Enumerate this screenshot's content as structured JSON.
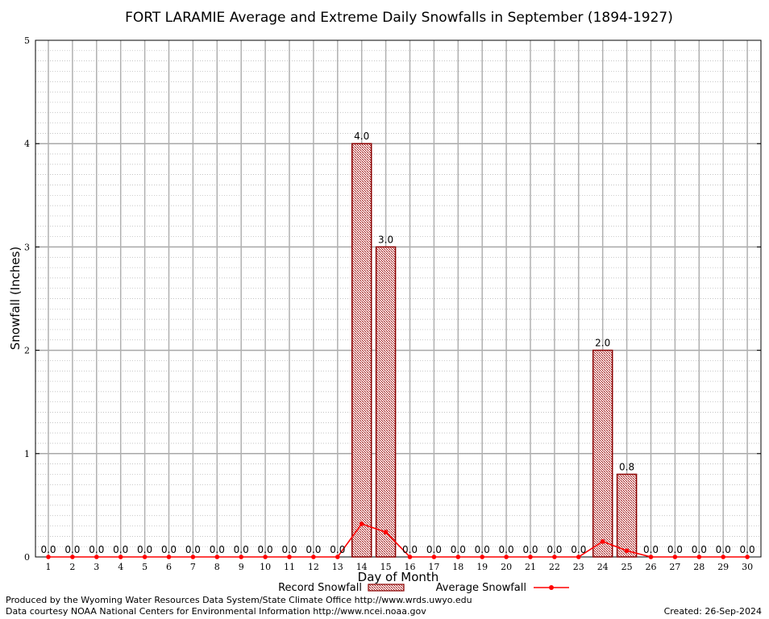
{
  "chart_data": {
    "type": "bar",
    "title": "FORT LARAMIE Average and Extreme Daily Snowfalls in September (1894-1927)",
    "xlabel": "Day of Month",
    "ylabel": "Snowfall (Inches)",
    "ylim": [
      0,
      5
    ],
    "yticks": [
      "0",
      "1",
      "2",
      "3",
      "4",
      "5"
    ],
    "categories": [
      "1",
      "2",
      "3",
      "4",
      "5",
      "6",
      "7",
      "8",
      "9",
      "10",
      "11",
      "12",
      "13",
      "14",
      "15",
      "16",
      "17",
      "18",
      "19",
      "20",
      "21",
      "22",
      "23",
      "24",
      "25",
      "26",
      "27",
      "28",
      "29",
      "30"
    ],
    "series": [
      {
        "name": "Record Snowfall",
        "type": "bar",
        "color": "#b22222",
        "values": [
          0,
          0,
          0,
          0,
          0,
          0,
          0,
          0,
          0,
          0,
          0,
          0,
          0,
          4.0,
          3.0,
          0,
          0,
          0,
          0,
          0,
          0,
          0,
          0,
          2.0,
          0.8,
          0,
          0,
          0,
          0,
          0
        ],
        "labels": [
          "0.0",
          "0.0",
          "0.0",
          "0.0",
          "0.0",
          "0.0",
          "0.0",
          "0.0",
          "0.0",
          "0.0",
          "0.0",
          "0.0",
          "0.0",
          "4.0",
          "3.0",
          "0.0",
          "0.0",
          "0.0",
          "0.0",
          "0.0",
          "0.0",
          "0.0",
          "0.0",
          "2.0",
          "0.8",
          "0.0",
          "0.0",
          "0.0",
          "0.0",
          "0.0"
        ]
      },
      {
        "name": "Average Snowfall",
        "type": "line",
        "color": "#ff0000",
        "values": [
          0,
          0,
          0,
          0,
          0,
          0,
          0,
          0,
          0,
          0,
          0,
          0,
          0,
          0.32,
          0.24,
          0,
          0,
          0,
          0,
          0,
          0,
          0,
          0,
          0.15,
          0.06,
          0,
          0,
          0,
          0,
          0
        ]
      }
    ],
    "grid": true,
    "legend_position": "bottom"
  },
  "footer": {
    "produced_by": "Produced by the Wyoming Water Resources Data System/State Climate Office http://www.wrds.uwyo.edu",
    "data_courtesy": "Data courtesy NOAA National Centers for Environmental Information http://www.ncei.noaa.gov",
    "created": "Created:  26-Sep-2024"
  }
}
